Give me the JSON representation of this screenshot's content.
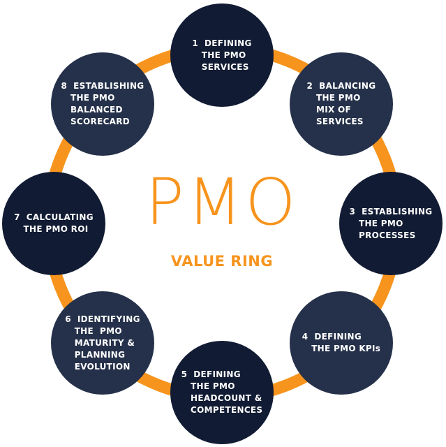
{
  "colors": {
    "ring": "#f7941d",
    "node_dark": "#111b33",
    "node_slate": "#25314a",
    "title": "#f7941d",
    "node_text": "#ffffff"
  },
  "center": {
    "title": "PMO",
    "subtitle": "VALUE RING"
  },
  "nodes": [
    {
      "label": "1  DEFINING\n   THE PMO\n   SERVICES"
    },
    {
      "label": "2  BALANCING\n   THE PMO\n   MIX OF\n   SERVICES"
    },
    {
      "label": "3  ESTABLISHING\n   THE PMO\n   PROCESSES"
    },
    {
      "label": "4  DEFINING\n   THE PMO KPIs"
    },
    {
      "label": "5  DEFINING\n   THE PMO\n   HEADCOUNT &\n   COMPETENCES"
    },
    {
      "label": "6  IDENTIFYING\n   THE  PMO\n   MATURITY &\n   PLANNING\n   EVOLUTION"
    },
    {
      "label": "7  CALCULATING\n   THE PMO ROI"
    },
    {
      "label": "8  ESTABLISHING\n   THE PMO\n   BALANCED\n   SCORECARD"
    }
  ]
}
